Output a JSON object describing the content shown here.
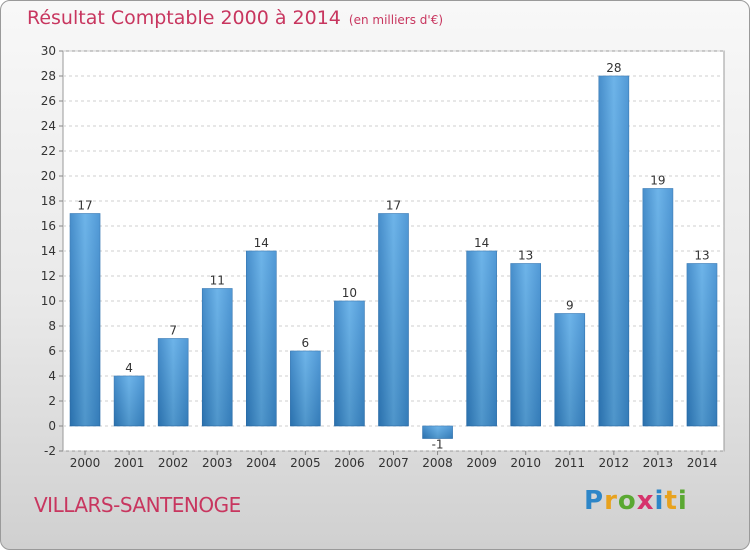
{
  "title": "Résultat Comptable 2000 à 2014",
  "subtitle": "(en milliers d'€)",
  "commune": "VILLARS-SANTENOGE",
  "logo": {
    "letters": [
      "P",
      "r",
      "o",
      "x",
      "i",
      "t",
      "i"
    ],
    "colors": [
      "#2d86c8",
      "#e8a21e",
      "#5aa832",
      "#d6336c",
      "#2d86c8",
      "#e8a21e",
      "#5aa832"
    ]
  },
  "chart_data": {
    "type": "bar",
    "title": "Résultat Comptable 2000 à 2014",
    "subtitle": "(en milliers d'€)",
    "categories": [
      "2000",
      "2001",
      "2002",
      "2003",
      "2004",
      "2005",
      "2006",
      "2007",
      "2008",
      "2009",
      "2010",
      "2011",
      "2012",
      "2013",
      "2014"
    ],
    "values": [
      17,
      4,
      7,
      11,
      14,
      6,
      10,
      17,
      -1,
      14,
      13,
      9,
      28,
      19,
      13
    ],
    "data_labels": [
      "17",
      "4",
      "7",
      "11",
      "14",
      "6",
      "10",
      "17",
      "-1",
      "14",
      "13",
      "9",
      "28",
      "19",
      "13"
    ],
    "y_ticks": [
      "-2",
      "0",
      "2",
      "4",
      "6",
      "8",
      "10",
      "12",
      "14",
      "16",
      "18",
      "20",
      "22",
      "24",
      "26",
      "28",
      "30"
    ],
    "ylim": [
      -2,
      30
    ],
    "grid": "horizontal",
    "bar_color": "#4f9fdd"
  }
}
